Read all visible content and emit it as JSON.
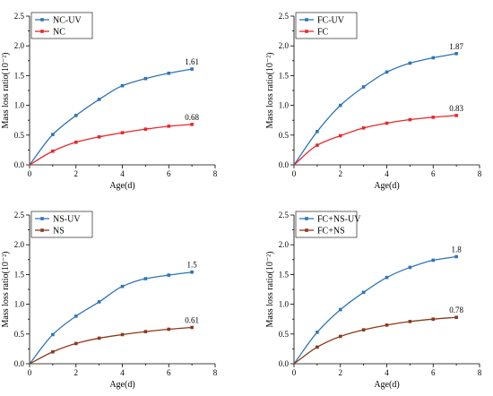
{
  "chart_data": [
    {
      "type": "line",
      "xlabel": "Age(d)",
      "ylabel": "Mass loss ratio(10⁻²)",
      "xlim": [
        0,
        8
      ],
      "ylim": [
        0,
        2.5
      ],
      "xticks": [
        "0",
        "2",
        "4",
        "6",
        "8"
      ],
      "yticks": [
        "0.0",
        "0.5",
        "1.0",
        "1.5",
        "2.0",
        "2.5"
      ],
      "legend_position": "top-left",
      "x": [
        0,
        1,
        2,
        3,
        4,
        5,
        6,
        7
      ],
      "series": [
        {
          "name": "NC-UV",
          "color": "#2e75b6",
          "values": [
            0,
            0.51,
            0.83,
            1.1,
            1.33,
            1.45,
            1.54,
            1.61
          ],
          "end_label": "1.61"
        },
        {
          "name": "NC",
          "color": "#e8282b",
          "values": [
            0,
            0.23,
            0.38,
            0.47,
            0.54,
            0.6,
            0.65,
            0.68
          ],
          "end_label": "0.68"
        }
      ]
    },
    {
      "type": "line",
      "xlabel": "Age(d)",
      "ylabel": "Mass loss ratio(10⁻²)",
      "xlim": [
        0,
        8
      ],
      "ylim": [
        0,
        2.5
      ],
      "xticks": [
        "0",
        "2",
        "4",
        "6",
        "8"
      ],
      "yticks": [
        "0.0",
        "0.5",
        "1.0",
        "1.5",
        "2.0",
        "2.5"
      ],
      "legend_position": "top-left",
      "x": [
        0,
        1,
        2,
        3,
        4,
        5,
        6,
        7
      ],
      "series": [
        {
          "name": "FC-UV",
          "color": "#2e75b6",
          "values": [
            0,
            0.56,
            1.0,
            1.31,
            1.56,
            1.71,
            1.8,
            1.87
          ],
          "end_label": "1.87"
        },
        {
          "name": "FC",
          "color": "#e8282b",
          "values": [
            0,
            0.33,
            0.49,
            0.62,
            0.7,
            0.76,
            0.8,
            0.83
          ],
          "end_label": "0.83"
        }
      ]
    },
    {
      "type": "line",
      "xlabel": "Age(d)",
      "ylabel": "Mass loss ratio(10⁻²)",
      "xlim": [
        0,
        8
      ],
      "ylim": [
        0,
        2.5
      ],
      "xticks": [
        "0",
        "2",
        "4",
        "6",
        "8"
      ],
      "yticks": [
        "0.0",
        "0.5",
        "1.0",
        "1.5",
        "2.0",
        "2.5"
      ],
      "legend_position": "top-left",
      "x": [
        0,
        1,
        2,
        3,
        4,
        5,
        6,
        7
      ],
      "series": [
        {
          "name": "NS-UV",
          "color": "#2e75b6",
          "values": [
            0,
            0.49,
            0.8,
            1.04,
            1.3,
            1.43,
            1.49,
            1.54
          ],
          "end_label": "1.5"
        },
        {
          "name": "NS",
          "color": "#8b3a1a",
          "values": [
            0,
            0.2,
            0.34,
            0.43,
            0.49,
            0.54,
            0.58,
            0.61
          ],
          "end_label": "0.61"
        }
      ]
    },
    {
      "type": "line",
      "xlabel": "Age(d)",
      "ylabel": "Mass loss ratio(10⁻²)",
      "xlim": [
        0,
        8
      ],
      "ylim": [
        0,
        2.5
      ],
      "xticks": [
        "0",
        "2",
        "4",
        "6",
        "8"
      ],
      "yticks": [
        "0.0",
        "0.5",
        "1.0",
        "1.5",
        "2.0",
        "2.5"
      ],
      "legend_position": "top-left",
      "x": [
        0,
        1,
        2,
        3,
        4,
        5,
        6,
        7
      ],
      "series": [
        {
          "name": "FC+NS-UV",
          "color": "#2e75b6",
          "values": [
            0,
            0.53,
            0.91,
            1.2,
            1.45,
            1.62,
            1.74,
            1.8
          ],
          "end_label": "1.8"
        },
        {
          "name": "FC+NS",
          "color": "#8b3a1a",
          "values": [
            0,
            0.28,
            0.46,
            0.57,
            0.65,
            0.71,
            0.75,
            0.78
          ],
          "end_label": "0.78"
        }
      ]
    }
  ]
}
